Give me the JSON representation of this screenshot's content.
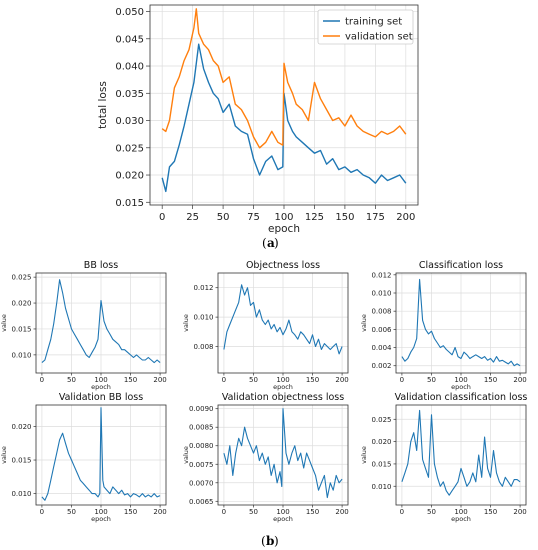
{
  "captions": {
    "a": "a",
    "b": "b"
  },
  "colors": {
    "training": "#1f77b4",
    "validation": "#ff7f0e",
    "grid": "#dddddd",
    "axis": "#333333"
  },
  "chart_data": [
    {
      "id": "total",
      "type": "line",
      "title": "",
      "xlabel": "epoch",
      "ylabel": "total loss",
      "xlim": [
        -10,
        210
      ],
      "ylim": [
        0.0145,
        0.0512
      ],
      "xticks": [
        0,
        25,
        50,
        75,
        100,
        125,
        150,
        175,
        200
      ],
      "yticks": [
        0.015,
        0.02,
        0.025,
        0.03,
        0.035,
        0.04,
        0.045,
        0.05
      ],
      "ytick_labels": [
        "0.015",
        "0.020",
        "0.025",
        "0.030",
        "0.035",
        "0.040",
        "0.045",
        "0.050"
      ],
      "grid": true,
      "legend_position": "top-right",
      "series": [
        {
          "name": "training set",
          "color": "#1f77b4",
          "x": [
            0,
            3,
            6,
            10,
            14,
            18,
            22,
            26,
            30,
            34,
            38,
            42,
            46,
            50,
            55,
            60,
            65,
            70,
            75,
            80,
            85,
            90,
            95,
            99,
            100,
            103,
            107,
            110,
            115,
            120,
            125,
            130,
            135,
            140,
            145,
            150,
            155,
            160,
            165,
            170,
            175,
            180,
            185,
            190,
            195,
            200
          ],
          "y": [
            0.0195,
            0.017,
            0.0215,
            0.0225,
            0.0255,
            0.029,
            0.033,
            0.037,
            0.044,
            0.0395,
            0.037,
            0.035,
            0.034,
            0.0315,
            0.033,
            0.029,
            0.028,
            0.0275,
            0.023,
            0.02,
            0.0225,
            0.0235,
            0.021,
            0.0215,
            0.035,
            0.03,
            0.028,
            0.027,
            0.026,
            0.025,
            0.024,
            0.0245,
            0.022,
            0.023,
            0.021,
            0.0215,
            0.0205,
            0.021,
            0.02,
            0.0195,
            0.0185,
            0.02,
            0.019,
            0.0195,
            0.02,
            0.0185
          ]
        },
        {
          "name": "validation set",
          "color": "#ff7f0e",
          "x": [
            0,
            3,
            6,
            10,
            14,
            18,
            22,
            26,
            28,
            30,
            34,
            38,
            42,
            46,
            50,
            55,
            60,
            65,
            70,
            75,
            80,
            85,
            90,
            95,
            99,
            100,
            103,
            107,
            110,
            115,
            120,
            125,
            130,
            135,
            140,
            145,
            150,
            155,
            160,
            165,
            170,
            175,
            180,
            185,
            190,
            195,
            200
          ],
          "y": [
            0.0285,
            0.028,
            0.03,
            0.036,
            0.038,
            0.041,
            0.043,
            0.047,
            0.0505,
            0.046,
            0.044,
            0.043,
            0.041,
            0.04,
            0.037,
            0.038,
            0.033,
            0.032,
            0.03,
            0.027,
            0.025,
            0.026,
            0.028,
            0.026,
            0.0255,
            0.0405,
            0.037,
            0.035,
            0.033,
            0.032,
            0.03,
            0.037,
            0.034,
            0.032,
            0.03,
            0.0305,
            0.029,
            0.031,
            0.029,
            0.028,
            0.0275,
            0.027,
            0.028,
            0.0275,
            0.028,
            0.029,
            0.0275
          ]
        }
      ]
    },
    {
      "id": "bb",
      "type": "line",
      "title": "BB loss",
      "xlabel": "epoch",
      "ylabel": "value",
      "xlim": [
        -10,
        210
      ],
      "ylim": [
        0.0065,
        0.0258
      ],
      "xticks": [
        0,
        50,
        100,
        150,
        200
      ],
      "yticks": [
        0.01,
        0.015,
        0.02,
        0.025
      ],
      "ytick_labels": [
        "0.010",
        "0.015",
        "0.020",
        "0.025"
      ],
      "grid": true,
      "series": [
        {
          "color": "#1f77b4",
          "x": [
            0,
            5,
            10,
            15,
            20,
            25,
            30,
            35,
            40,
            45,
            50,
            55,
            60,
            65,
            70,
            75,
            80,
            85,
            90,
            95,
            100,
            105,
            110,
            115,
            120,
            125,
            130,
            135,
            140,
            145,
            150,
            155,
            160,
            165,
            170,
            175,
            180,
            185,
            190,
            195,
            200
          ],
          "y": [
            0.0085,
            0.009,
            0.011,
            0.013,
            0.016,
            0.02,
            0.0245,
            0.022,
            0.019,
            0.017,
            0.015,
            0.014,
            0.013,
            0.012,
            0.011,
            0.01,
            0.0095,
            0.0105,
            0.0115,
            0.013,
            0.0205,
            0.0165,
            0.015,
            0.014,
            0.013,
            0.0125,
            0.012,
            0.011,
            0.011,
            0.0105,
            0.01,
            0.0095,
            0.01,
            0.0095,
            0.009,
            0.009,
            0.0095,
            0.009,
            0.0085,
            0.009,
            0.0085
          ]
        }
      ]
    },
    {
      "id": "obj",
      "type": "line",
      "title": "Objectness loss",
      "xlabel": "epoch",
      "ylabel": "value",
      "xlim": [
        -10,
        210
      ],
      "ylim": [
        0.0062,
        0.013
      ],
      "xticks": [
        0,
        50,
        100,
        150,
        200
      ],
      "yticks": [
        0.008,
        0.01,
        0.012
      ],
      "ytick_labels": [
        "0.008",
        "0.010",
        "0.012"
      ],
      "grid": true,
      "series": [
        {
          "color": "#1f77b4",
          "x": [
            0,
            5,
            10,
            15,
            20,
            25,
            30,
            35,
            40,
            45,
            50,
            55,
            60,
            65,
            70,
            75,
            80,
            85,
            90,
            95,
            100,
            105,
            110,
            115,
            120,
            125,
            130,
            135,
            140,
            145,
            150,
            155,
            160,
            165,
            170,
            175,
            180,
            185,
            190,
            195,
            200
          ],
          "y": [
            0.0078,
            0.009,
            0.0095,
            0.01,
            0.0105,
            0.011,
            0.0122,
            0.0115,
            0.012,
            0.0108,
            0.011,
            0.01,
            0.0105,
            0.0098,
            0.0095,
            0.0098,
            0.0092,
            0.0095,
            0.009,
            0.0093,
            0.0088,
            0.0092,
            0.0098,
            0.009,
            0.0088,
            0.0085,
            0.009,
            0.0088,
            0.0085,
            0.0082,
            0.0088,
            0.008,
            0.0085,
            0.0078,
            0.0082,
            0.008,
            0.0078,
            0.008,
            0.0082,
            0.0075,
            0.008
          ]
        }
      ]
    },
    {
      "id": "cls",
      "type": "line",
      "title": "Classification loss",
      "xlabel": "epoch",
      "ylabel": "value",
      "xlim": [
        -10,
        210
      ],
      "ylim": [
        0.0012,
        0.0122
      ],
      "xticks": [
        0,
        50,
        100,
        150,
        200
      ],
      "yticks": [
        0.002,
        0.004,
        0.006,
        0.008,
        0.01,
        0.012
      ],
      "ytick_labels": [
        "0.002",
        "0.004",
        "0.006",
        "0.008",
        "0.010",
        "0.012"
      ],
      "grid": true,
      "series": [
        {
          "color": "#1f77b4",
          "x": [
            0,
            5,
            10,
            15,
            20,
            25,
            30,
            35,
            40,
            45,
            50,
            55,
            60,
            65,
            70,
            75,
            80,
            85,
            90,
            95,
            100,
            105,
            110,
            115,
            120,
            125,
            130,
            135,
            140,
            145,
            150,
            155,
            160,
            165,
            170,
            175,
            180,
            185,
            190,
            195,
            200
          ],
          "y": [
            0.003,
            0.0025,
            0.0028,
            0.0035,
            0.004,
            0.005,
            0.0115,
            0.007,
            0.006,
            0.0055,
            0.0058,
            0.005,
            0.0045,
            0.004,
            0.0042,
            0.0038,
            0.0035,
            0.0032,
            0.004,
            0.003,
            0.0028,
            0.0035,
            0.0032,
            0.0028,
            0.003,
            0.0032,
            0.003,
            0.0028,
            0.003,
            0.0026,
            0.0028,
            0.0024,
            0.003,
            0.0025,
            0.0026,
            0.0024,
            0.0022,
            0.0025,
            0.002,
            0.0022,
            0.002
          ]
        }
      ]
    },
    {
      "id": "vbb",
      "type": "line",
      "title": "Validation BB loss",
      "xlabel": "epoch",
      "ylabel": "value",
      "xlim": [
        -10,
        210
      ],
      "ylim": [
        0.0083,
        0.0232
      ],
      "xticks": [
        0,
        50,
        100,
        150,
        200
      ],
      "yticks": [
        0.01,
        0.015,
        0.02
      ],
      "ytick_labels": [
        "0.010",
        "0.015",
        "0.020"
      ],
      "grid": true,
      "series": [
        {
          "color": "#1f77b4",
          "x": [
            0,
            5,
            10,
            15,
            20,
            25,
            30,
            35,
            40,
            45,
            50,
            55,
            60,
            65,
            70,
            75,
            80,
            85,
            90,
            95,
            98,
            100,
            103,
            105,
            110,
            115,
            120,
            125,
            130,
            135,
            140,
            145,
            150,
            155,
            160,
            165,
            170,
            175,
            180,
            185,
            190,
            195,
            200
          ],
          "y": [
            0.0095,
            0.009,
            0.01,
            0.012,
            0.014,
            0.016,
            0.018,
            0.019,
            0.0175,
            0.016,
            0.015,
            0.014,
            0.013,
            0.012,
            0.0115,
            0.011,
            0.0105,
            0.01,
            0.01,
            0.0095,
            0.01,
            0.0228,
            0.012,
            0.011,
            0.0105,
            0.01,
            0.011,
            0.0105,
            0.01,
            0.0105,
            0.0098,
            0.01,
            0.0095,
            0.01,
            0.0098,
            0.0095,
            0.01,
            0.0095,
            0.0098,
            0.0095,
            0.01,
            0.0095,
            0.0097
          ]
        }
      ]
    },
    {
      "id": "vobj",
      "type": "line",
      "title": "Validation objectness loss",
      "xlabel": "epoch",
      "ylabel": "value",
      "xlim": [
        -10,
        210
      ],
      "ylim": [
        0.0064,
        0.0091
      ],
      "xticks": [
        0,
        50,
        100,
        150,
        200
      ],
      "yticks": [
        0.0065,
        0.007,
        0.0075,
        0.008,
        0.0085,
        0.009
      ],
      "ytick_labels": [
        "0.0065",
        "0.0070",
        "0.0075",
        "0.0080",
        "0.0085",
        "0.0090"
      ],
      "grid": true,
      "series": [
        {
          "color": "#1f77b4",
          "x": [
            0,
            5,
            10,
            15,
            20,
            25,
            30,
            35,
            40,
            45,
            50,
            55,
            60,
            65,
            70,
            75,
            80,
            85,
            90,
            95,
            98,
            100,
            105,
            110,
            115,
            120,
            125,
            130,
            135,
            140,
            145,
            150,
            155,
            160,
            165,
            170,
            175,
            180,
            185,
            190,
            195,
            200
          ],
          "y": [
            0.0078,
            0.0075,
            0.008,
            0.0072,
            0.0078,
            0.0082,
            0.008,
            0.0085,
            0.0082,
            0.008,
            0.0078,
            0.008,
            0.0076,
            0.0078,
            0.0075,
            0.0077,
            0.0072,
            0.0075,
            0.007,
            0.0073,
            0.0069,
            0.009,
            0.0078,
            0.0075,
            0.0078,
            0.008,
            0.0076,
            0.0078,
            0.0074,
            0.0078,
            0.0076,
            0.0074,
            0.0072,
            0.0068,
            0.007,
            0.0072,
            0.0066,
            0.007,
            0.0068,
            0.0072,
            0.007,
            0.0071
          ]
        }
      ]
    },
    {
      "id": "vcls",
      "type": "line",
      "title": "Validation classification loss",
      "xlabel": "epoch",
      "ylabel": "value",
      "xlim": [
        -10,
        210
      ],
      "ylim": [
        0.0058,
        0.0282
      ],
      "xticks": [
        0,
        50,
        100,
        150,
        200
      ],
      "yticks": [
        0.01,
        0.015,
        0.02,
        0.025
      ],
      "ytick_labels": [
        "0.010",
        "0.015",
        "0.020",
        "0.025"
      ],
      "grid": true,
      "series": [
        {
          "color": "#1f77b4",
          "x": [
            0,
            5,
            10,
            15,
            20,
            25,
            30,
            35,
            40,
            45,
            50,
            55,
            60,
            65,
            70,
            75,
            80,
            85,
            90,
            95,
            100,
            105,
            110,
            115,
            120,
            125,
            130,
            135,
            140,
            145,
            150,
            155,
            160,
            165,
            170,
            175,
            180,
            185,
            190,
            195,
            200
          ],
          "y": [
            0.011,
            0.013,
            0.015,
            0.02,
            0.022,
            0.018,
            0.027,
            0.016,
            0.014,
            0.012,
            0.026,
            0.015,
            0.012,
            0.01,
            0.011,
            0.009,
            0.008,
            0.009,
            0.01,
            0.011,
            0.014,
            0.012,
            0.01,
            0.011,
            0.013,
            0.011,
            0.017,
            0.012,
            0.021,
            0.014,
            0.012,
            0.018,
            0.013,
            0.011,
            0.01,
            0.012,
            0.011,
            0.01,
            0.0115,
            0.0115,
            0.011
          ]
        }
      ]
    }
  ]
}
